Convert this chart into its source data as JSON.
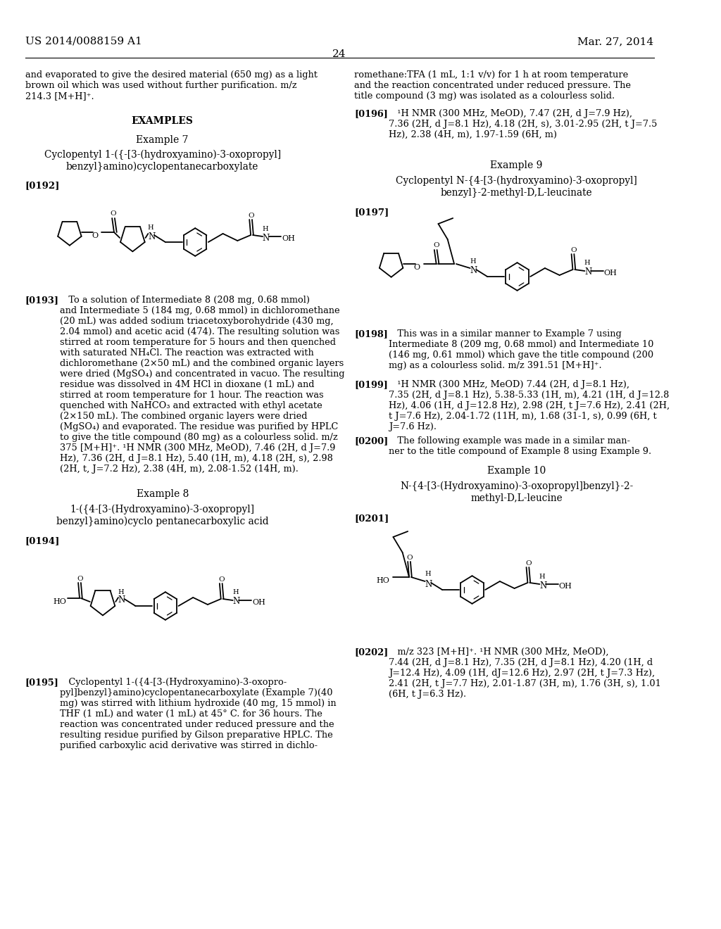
{
  "background_color": "#ffffff",
  "header_left": "US 2014/0088159 A1",
  "header_right": "Mar. 27, 2014",
  "page_number": "24"
}
